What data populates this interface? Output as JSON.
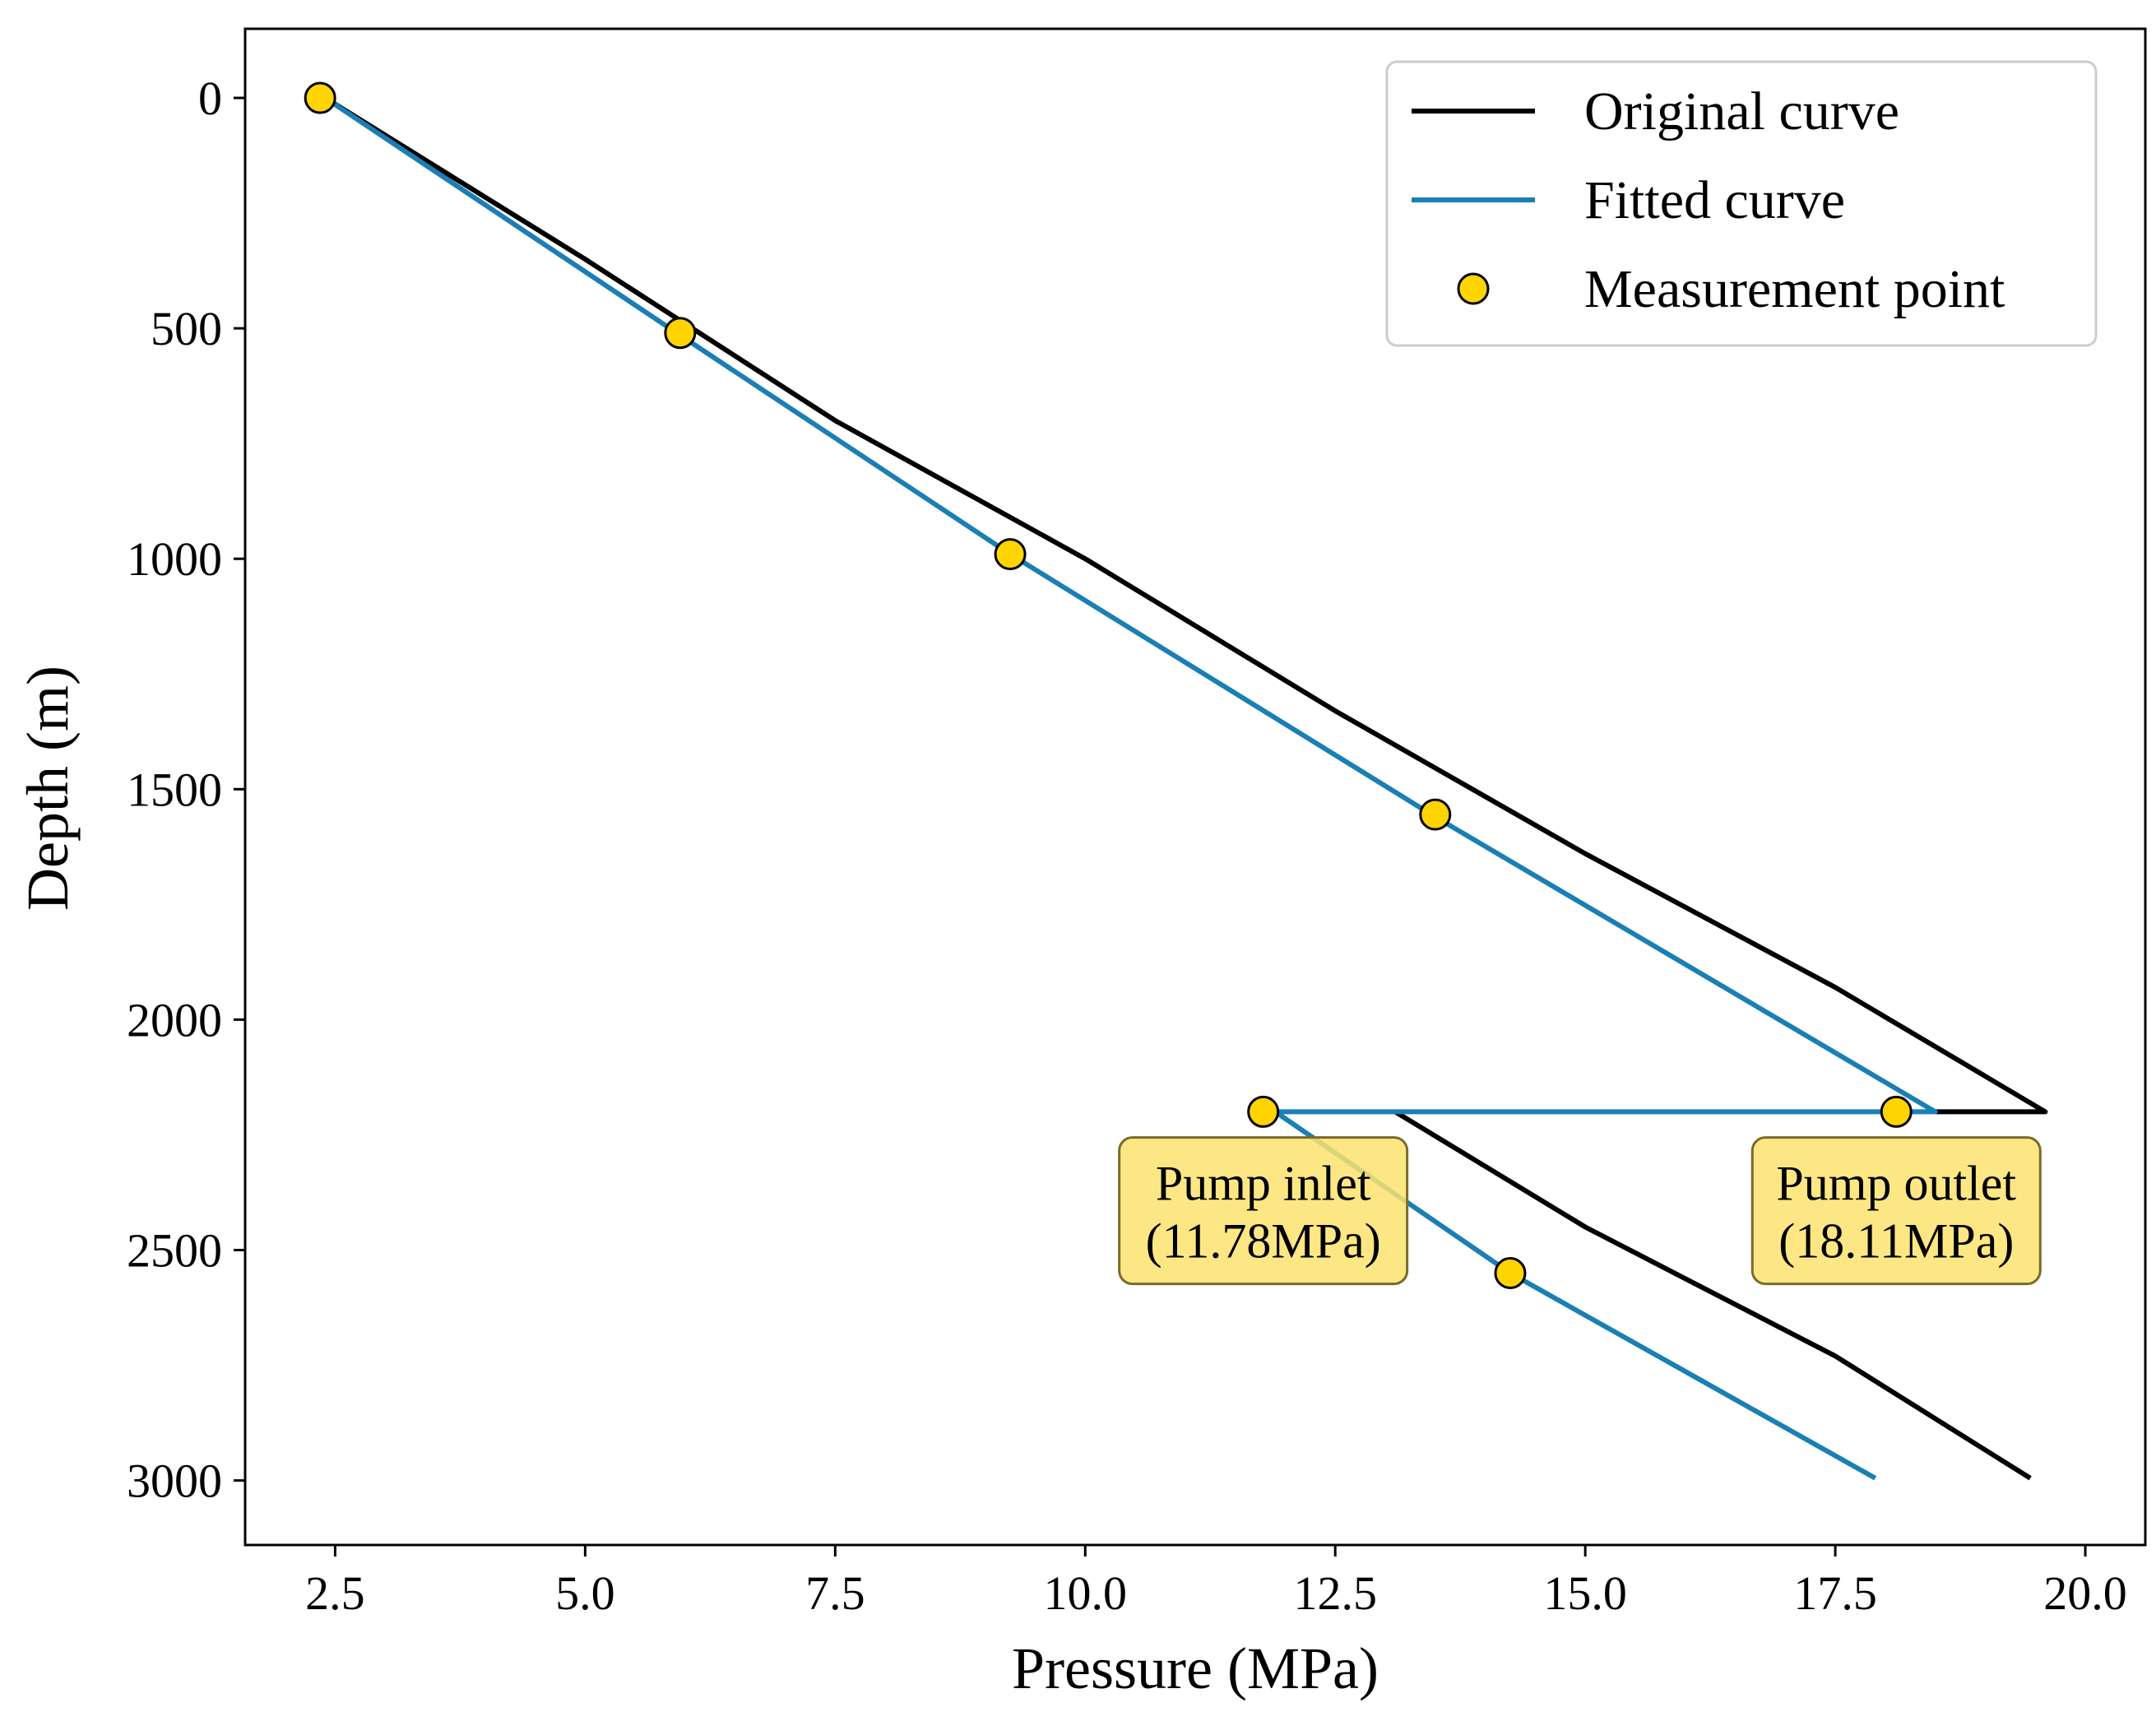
{
  "chart_data": {
    "type": "line",
    "title": "",
    "xlabel": "Pressure (MPa)",
    "ylabel": "Depth (m)",
    "xlim": [
      1.6,
      20.6
    ],
    "ylim": [
      3140,
      -150
    ],
    "y_inverted": true,
    "grid": false,
    "legend_position": "top-right",
    "x_ticks": [
      2.5,
      5.0,
      7.5,
      10.0,
      12.5,
      15.0,
      17.5,
      20.0
    ],
    "x_tick_labels": [
      "2.5",
      "5.0",
      "7.5",
      "10.0",
      "12.5",
      "15.0",
      "17.5",
      "20.0"
    ],
    "y_ticks": [
      0,
      500,
      1000,
      1500,
      2000,
      2500,
      3000
    ],
    "y_tick_labels": [
      "0",
      "500",
      "1000",
      "1500",
      "2000",
      "2500",
      "3000"
    ],
    "series": [
      {
        "name": "Original curve",
        "kind": "line",
        "color": "#000000",
        "segments": [
          [
            [
              2.4,
              0
            ],
            [
              5.0,
              350
            ],
            [
              7.5,
              700
            ],
            [
              10.0,
              1000
            ],
            [
              12.5,
              1330
            ],
            [
              15.0,
              1640
            ],
            [
              17.5,
              1930
            ],
            [
              19.6,
              2200
            ],
            [
              18.5,
              2200
            ]
          ],
          [
            [
              13.1,
              2200
            ],
            [
              15.0,
              2450
            ],
            [
              17.5,
              2730
            ],
            [
              19.45,
              2995
            ]
          ]
        ]
      },
      {
        "name": "Fitted curve",
        "kind": "line",
        "color": "#1a7fb5",
        "segments": [
          [
            [
              2.4,
              0
            ],
            [
              5.95,
              515
            ],
            [
              9.25,
              990
            ],
            [
              13.5,
              1560
            ],
            [
              18.5,
              2200
            ],
            [
              11.9,
              2200
            ],
            [
              14.25,
              2550
            ],
            [
              17.9,
              2995
            ]
          ]
        ]
      },
      {
        "name": "Measurement point",
        "kind": "scatter",
        "color": "#ffd400",
        "edgecolor": "#000000",
        "points": [
          [
            2.35,
            0
          ],
          [
            5.95,
            510
          ],
          [
            9.25,
            990
          ],
          [
            13.5,
            1555
          ],
          [
            11.78,
            2200
          ],
          [
            18.11,
            2200
          ],
          [
            14.25,
            2550
          ]
        ]
      }
    ],
    "annotations": [
      {
        "line1": "Pump inlet",
        "line2": "(11.78MPa)",
        "x": 11.78,
        "y": 2320,
        "fill": "#fde36f",
        "edge": "#7a6a2a"
      },
      {
        "line1": "Pump outlet",
        "line2": "(18.11MPa)",
        "x": 18.11,
        "y": 2320,
        "fill": "#fde36f",
        "edge": "#7a6a2a"
      }
    ]
  }
}
